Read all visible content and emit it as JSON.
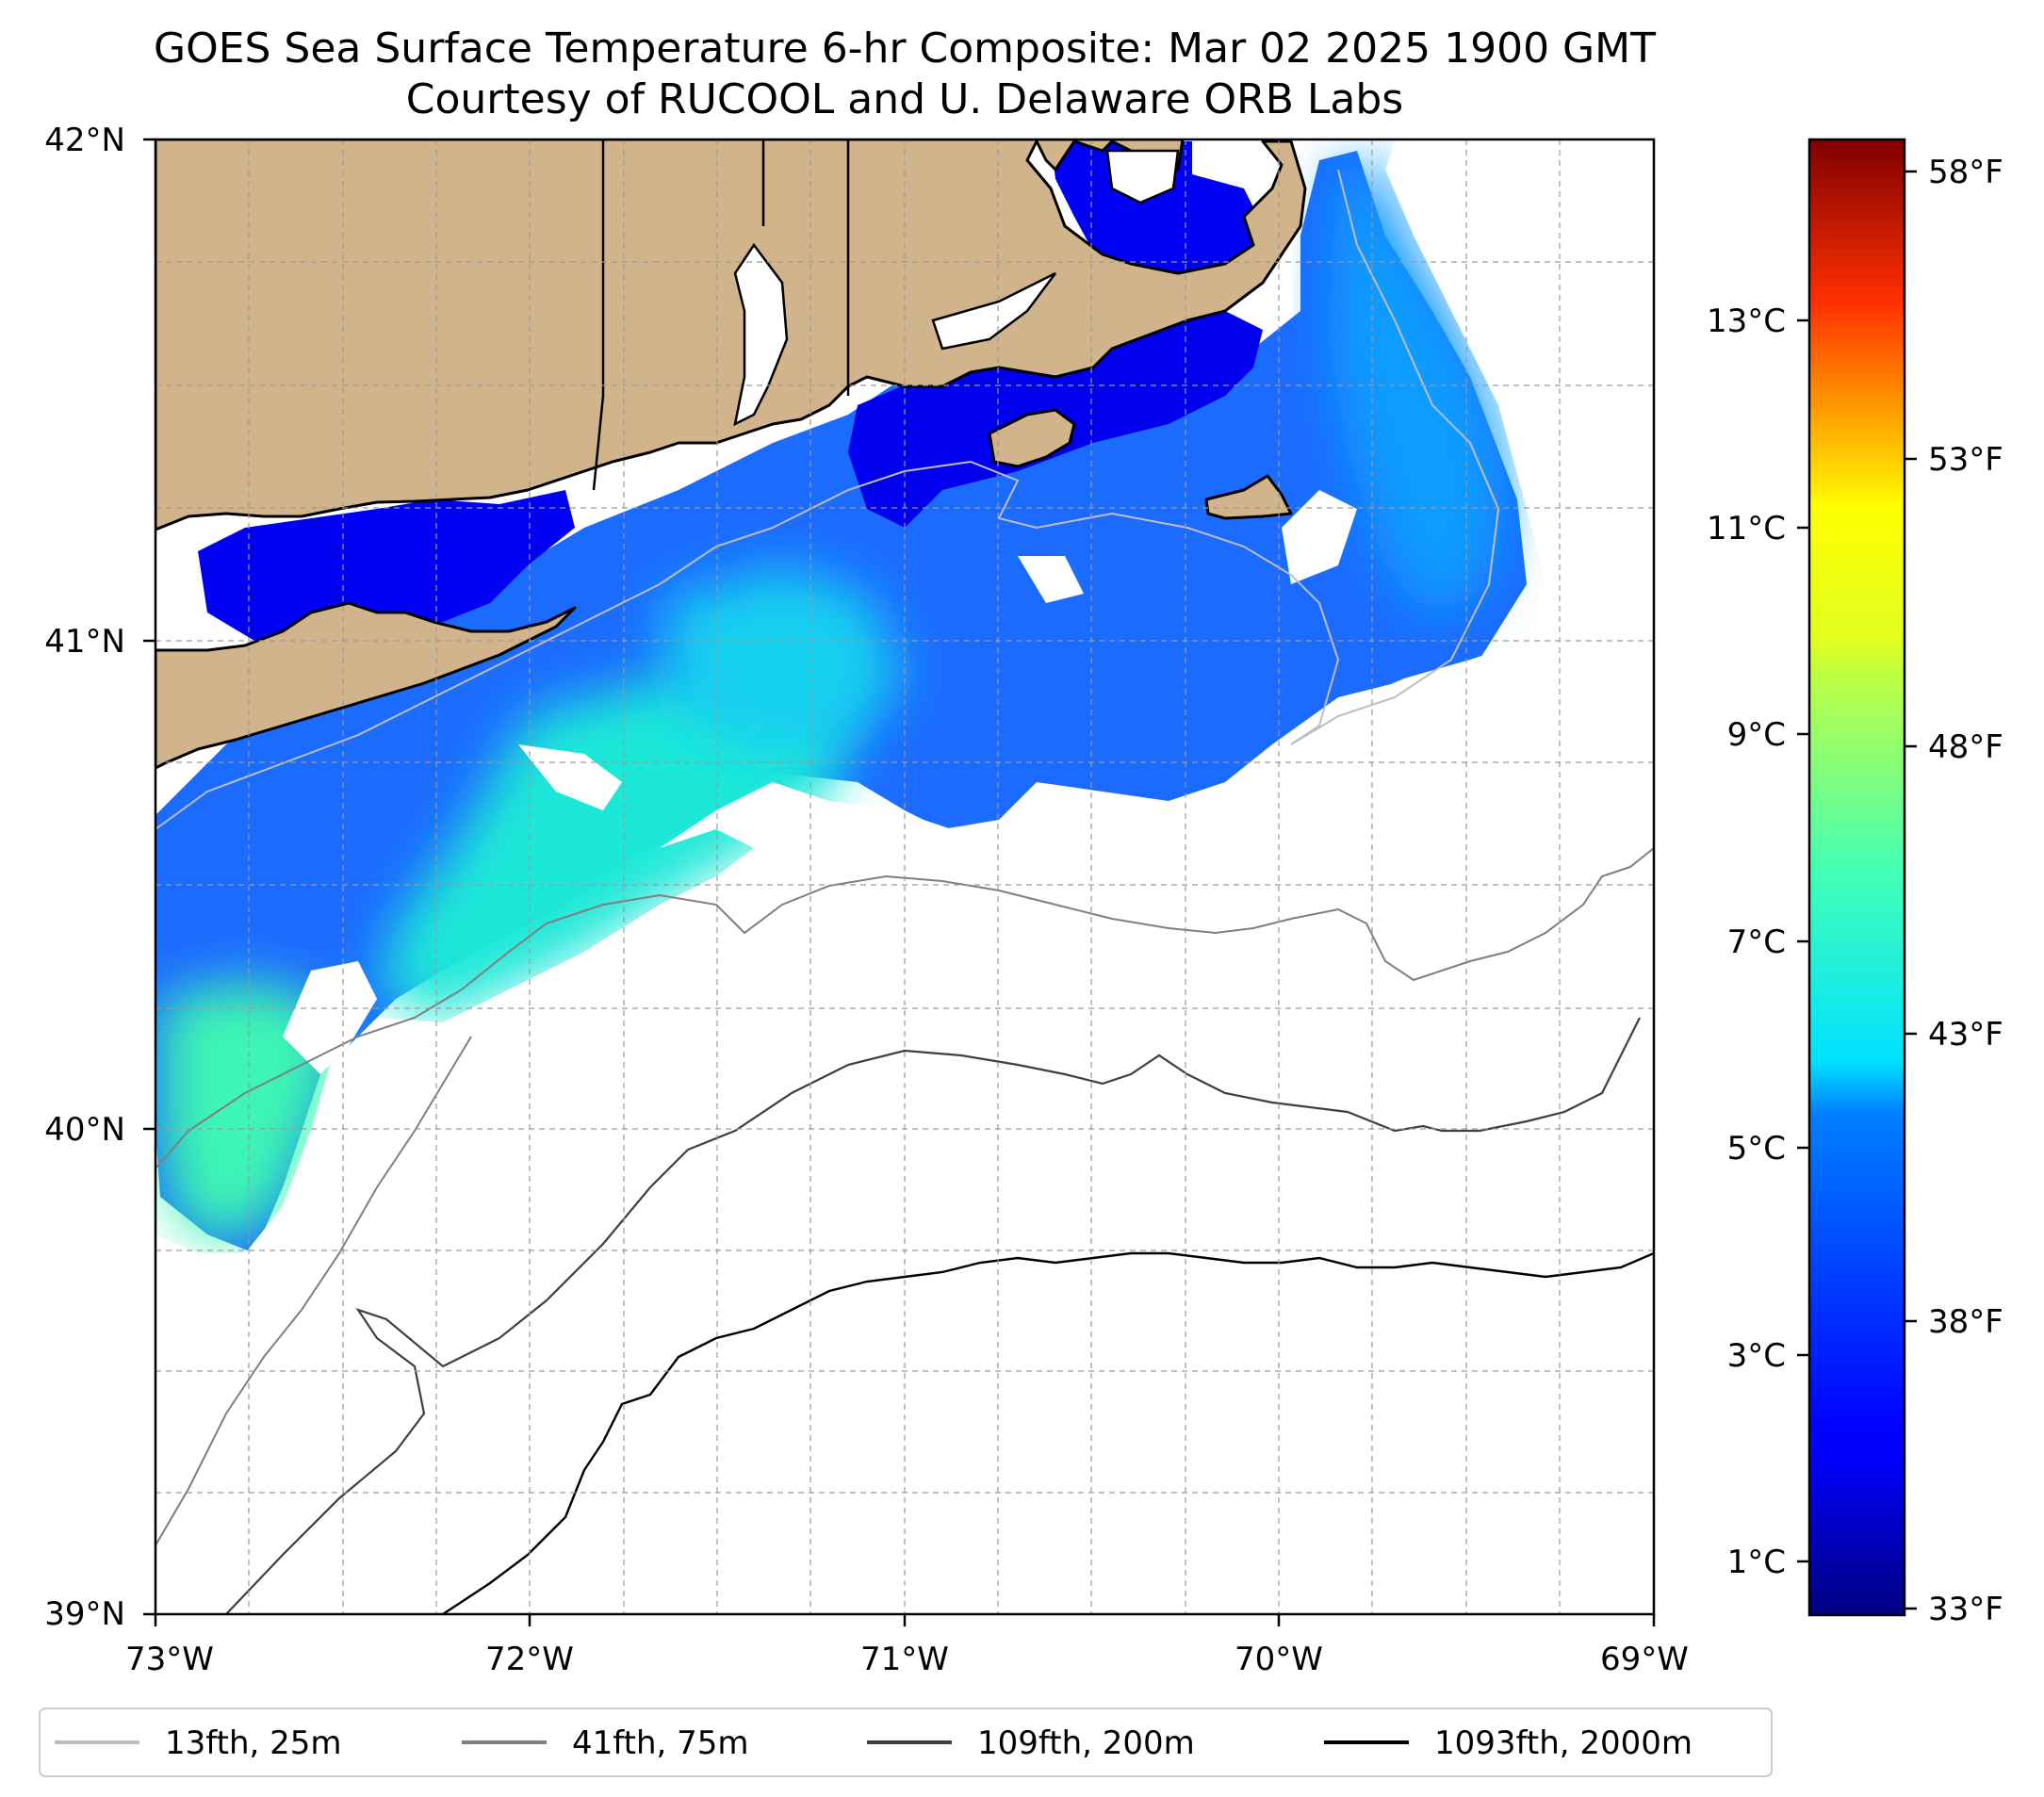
{
  "title": {
    "line1": "GOES Sea Surface Temperature 6-hr Composite: Mar 02 2025 1900 GMT",
    "line2": "Courtesy of RUCOOL and U. Delaware ORB Labs"
  },
  "map": {
    "lon_range": [
      -73,
      -69
    ],
    "lat_range": [
      39,
      42
    ],
    "lon_ticks": [
      {
        "value": -73,
        "label": "73°W"
      },
      {
        "value": -72,
        "label": "72°W"
      },
      {
        "value": -71,
        "label": "71°W"
      },
      {
        "value": -70,
        "label": "70°W"
      },
      {
        "value": -69,
        "label": "69°W"
      }
    ],
    "lat_ticks": [
      {
        "value": 42,
        "label": "42°N"
      },
      {
        "value": 41,
        "label": "41°N"
      },
      {
        "value": 40,
        "label": "40°N"
      },
      {
        "value": 39,
        "label": "39°N"
      }
    ],
    "grid": "dashed",
    "land_color": "#D2B48C",
    "ocean_color": "#ffffff"
  },
  "colorbar": {
    "colormap": "jet",
    "celsius_ticks": [
      {
        "value": 13,
        "label": "13°C"
      },
      {
        "value": 11,
        "label": "11°C"
      },
      {
        "value": 9,
        "label": "9°C"
      },
      {
        "value": 7,
        "label": "7°C"
      },
      {
        "value": 5,
        "label": "5°C"
      },
      {
        "value": 3,
        "label": "3°C"
      },
      {
        "value": 1,
        "label": "1°C"
      }
    ],
    "fahrenheit_ticks": [
      {
        "value": 58,
        "label": "58°F"
      },
      {
        "value": 53,
        "label": "53°F"
      },
      {
        "value": 48,
        "label": "48°F"
      },
      {
        "value": 43,
        "label": "43°F"
      },
      {
        "value": 38,
        "label": "38°F"
      },
      {
        "value": 33,
        "label": "33°F"
      }
    ]
  },
  "legend": {
    "placement": "bottom",
    "items": [
      {
        "label": "13fth, 25m",
        "color": "#bdbdbd"
      },
      {
        "label": "41fth, 75m",
        "color": "#7f7f7f"
      },
      {
        "label": "109fth, 200m",
        "color": "#3f3f3f"
      },
      {
        "label": "1093fth, 2000m",
        "color": "#000000"
      }
    ]
  }
}
